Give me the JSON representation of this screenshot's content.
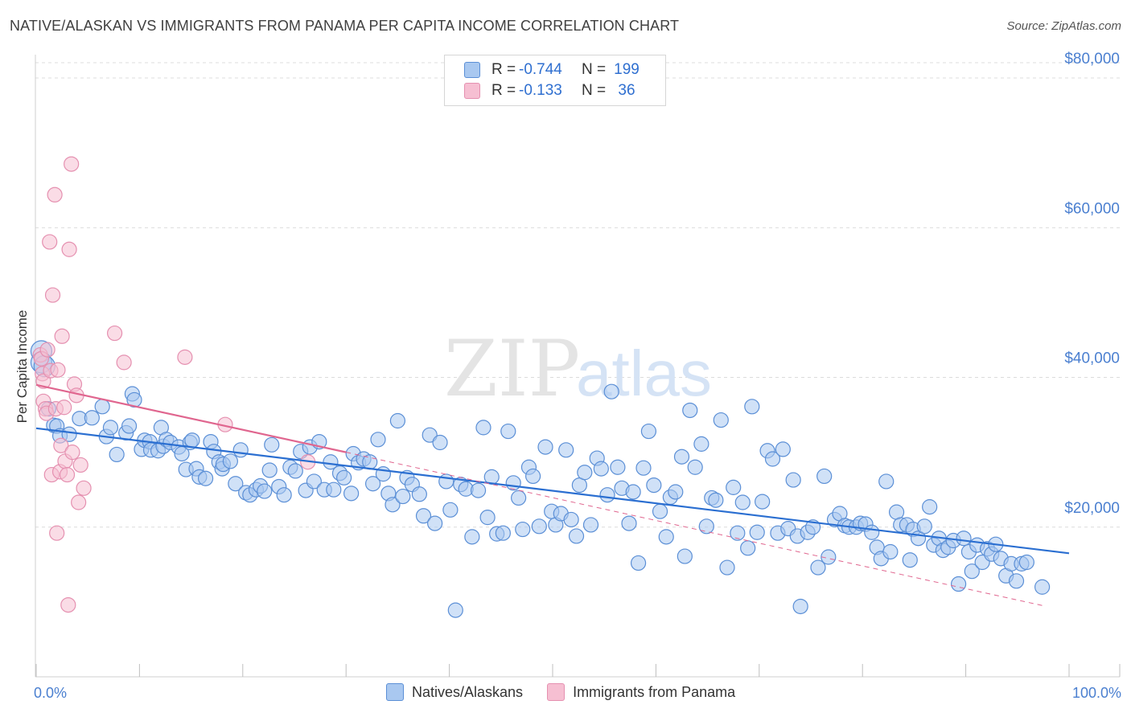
{
  "title": "NATIVE/ALASKAN VS IMMIGRANTS FROM PANAMA PER CAPITA INCOME CORRELATION CHART",
  "source": "Source: ZipAtlas.com",
  "watermark": {
    "zip": "ZIP",
    "atlas": "atlas"
  },
  "colors": {
    "blue_fill": "#a9c8f0",
    "blue_stroke": "#5b8fd6",
    "blue_line": "#2b6fd1",
    "pink_fill": "#f6bfd2",
    "pink_stroke": "#e590b0",
    "pink_line": "#e0668f",
    "grid": "#dcdcdc",
    "axis_text": "#4a7fd0"
  },
  "stats": [
    {
      "r_label": "R =",
      "r_value": "-0.744",
      "n_label": "N =",
      "n_value": "199",
      "series": "blue"
    },
    {
      "r_label": "R =",
      "r_value": "-0.133",
      "n_label": "N =",
      "n_value": "36",
      "series": "pink"
    }
  ],
  "legend": [
    {
      "label": "Natives/Alaskans",
      "series": "blue"
    },
    {
      "label": "Immigrants from Panama",
      "series": "pink"
    }
  ],
  "chart_data": {
    "type": "scatter",
    "title": "NATIVE/ALASKAN VS IMMIGRANTS FROM PANAMA PER CAPITA INCOME CORRELATION CHART",
    "xlabel": "",
    "ylabel": "Per Capita Income",
    "xlim": [
      0,
      100
    ],
    "ylim": [
      0,
      82000
    ],
    "x_tick_labels": [
      "0.0%",
      "100.0%"
    ],
    "y_ticks": [
      20000,
      40000,
      60000,
      80000
    ],
    "y_tick_labels": [
      "$20,000",
      "$40,000",
      "$60,000",
      "$80,000"
    ],
    "grid": true,
    "legend_position": "bottom",
    "series": [
      {
        "name": "Natives/Alaskans",
        "color": "blue",
        "trend": {
          "x": [
            0,
            100
          ],
          "y": [
            33200,
            16500
          ],
          "style": "solid"
        },
        "points": [
          [
            0.5,
            43500
          ],
          [
            0.5,
            42000
          ],
          [
            0.8,
            41500
          ],
          [
            1.2,
            35800
          ],
          [
            1.7,
            33600
          ],
          [
            2,
            33500
          ],
          [
            2.3,
            32200
          ],
          [
            3.2,
            32400
          ],
          [
            4.2,
            34500
          ],
          [
            5.4,
            34600
          ],
          [
            6.4,
            36100
          ],
          [
            6.8,
            32100
          ],
          [
            7.2,
            33300
          ],
          [
            7.8,
            29700
          ],
          [
            8.7,
            32600
          ],
          [
            9,
            33500
          ],
          [
            9.3,
            37800
          ],
          [
            9.5,
            37000
          ],
          [
            10.2,
            30400
          ],
          [
            10.5,
            31600
          ],
          [
            11,
            31400
          ],
          [
            11.1,
            30300
          ],
          [
            11.8,
            30200
          ],
          [
            12.1,
            33300
          ],
          [
            12.3,
            30800
          ],
          [
            12.6,
            31700
          ],
          [
            13,
            31300
          ],
          [
            13.8,
            30700
          ],
          [
            14.1,
            29800
          ],
          [
            14.5,
            27700
          ],
          [
            14.9,
            31300
          ],
          [
            15.1,
            31600
          ],
          [
            15.5,
            27800
          ],
          [
            15.8,
            26700
          ],
          [
            16.4,
            26500
          ],
          [
            16.9,
            31400
          ],
          [
            17.2,
            30100
          ],
          [
            17.7,
            28700
          ],
          [
            18,
            27800
          ],
          [
            18.1,
            28400
          ],
          [
            18.8,
            28800
          ],
          [
            19.3,
            25800
          ],
          [
            19.8,
            30300
          ],
          [
            20.3,
            24600
          ],
          [
            20.7,
            24300
          ],
          [
            21.3,
            25000
          ],
          [
            21.7,
            25500
          ],
          [
            22.1,
            24800
          ],
          [
            22.6,
            27600
          ],
          [
            22.8,
            31000
          ],
          [
            23.5,
            25400
          ],
          [
            24,
            24300
          ],
          [
            24.6,
            28000
          ],
          [
            25.1,
            27500
          ],
          [
            25.6,
            30100
          ],
          [
            26.1,
            24900
          ],
          [
            26.5,
            30700
          ],
          [
            26.9,
            26100
          ],
          [
            27.4,
            31400
          ],
          [
            27.9,
            25000
          ],
          [
            28.5,
            28700
          ],
          [
            28.8,
            25000
          ],
          [
            29.4,
            27200
          ],
          [
            29.8,
            26600
          ],
          [
            30.5,
            24500
          ],
          [
            30.7,
            29800
          ],
          [
            31.2,
            28600
          ],
          [
            31.7,
            29100
          ],
          [
            32.3,
            28700
          ],
          [
            32.6,
            25800
          ],
          [
            33.1,
            31700
          ],
          [
            33.6,
            27100
          ],
          [
            34.1,
            24500
          ],
          [
            34.5,
            23000
          ],
          [
            35,
            34200
          ],
          [
            35.5,
            24100
          ],
          [
            35.9,
            26600
          ],
          [
            36.4,
            25700
          ],
          [
            37.1,
            24400
          ],
          [
            37.5,
            21500
          ],
          [
            38.1,
            32300
          ],
          [
            38.6,
            20500
          ],
          [
            39.1,
            31300
          ],
          [
            39.7,
            26100
          ],
          [
            40.1,
            22300
          ],
          [
            40.6,
            8900
          ],
          [
            41.1,
            25700
          ],
          [
            41.6,
            25100
          ],
          [
            42.2,
            18700
          ],
          [
            42.8,
            24900
          ],
          [
            43.3,
            33300
          ],
          [
            43.7,
            21300
          ],
          [
            44.1,
            26700
          ],
          [
            44.6,
            19100
          ],
          [
            45.2,
            19200
          ],
          [
            45.7,
            32800
          ],
          [
            46.2,
            25900
          ],
          [
            46.7,
            23900
          ],
          [
            47.1,
            19700
          ],
          [
            47.7,
            28000
          ],
          [
            48.1,
            26800
          ],
          [
            48.7,
            20100
          ],
          [
            49.3,
            30700
          ],
          [
            49.9,
            22100
          ],
          [
            50.3,
            20300
          ],
          [
            50.8,
            21800
          ],
          [
            51.3,
            30300
          ],
          [
            51.8,
            21000
          ],
          [
            52.3,
            18800
          ],
          [
            52.6,
            25600
          ],
          [
            53.1,
            27300
          ],
          [
            53.7,
            20300
          ],
          [
            54.3,
            29200
          ],
          [
            54.7,
            27800
          ],
          [
            55.3,
            24300
          ],
          [
            55.7,
            38100
          ],
          [
            56.3,
            28000
          ],
          [
            56.7,
            25200
          ],
          [
            57.4,
            20500
          ],
          [
            57.8,
            24700
          ],
          [
            58.3,
            15200
          ],
          [
            58.8,
            27900
          ],
          [
            59.3,
            32800
          ],
          [
            59.8,
            25600
          ],
          [
            60.4,
            22100
          ],
          [
            61,
            18700
          ],
          [
            61.4,
            24000
          ],
          [
            61.9,
            24700
          ],
          [
            62.5,
            29400
          ],
          [
            62.8,
            16100
          ],
          [
            63.3,
            35600
          ],
          [
            63.8,
            28000
          ],
          [
            64.4,
            31100
          ],
          [
            64.9,
            20100
          ],
          [
            65.4,
            23900
          ],
          [
            65.8,
            23600
          ],
          [
            66.3,
            34300
          ],
          [
            66.9,
            14600
          ],
          [
            67.5,
            25300
          ],
          [
            67.9,
            19200
          ],
          [
            68.4,
            23300
          ],
          [
            68.9,
            17200
          ],
          [
            69.3,
            36100
          ],
          [
            69.8,
            19300
          ],
          [
            70.3,
            23400
          ],
          [
            70.8,
            30200
          ],
          [
            71.3,
            29100
          ],
          [
            71.8,
            19200
          ],
          [
            72.3,
            30400
          ],
          [
            72.8,
            19800
          ],
          [
            73.3,
            26300
          ],
          [
            73.7,
            18800
          ],
          [
            74,
            9400
          ],
          [
            74.7,
            19300
          ],
          [
            75.2,
            20000
          ],
          [
            75.7,
            14600
          ],
          [
            76.3,
            26800
          ],
          [
            76.7,
            16000
          ],
          [
            77.3,
            21000
          ],
          [
            77.8,
            21800
          ],
          [
            78.3,
            20200
          ],
          [
            78.7,
            20000
          ],
          [
            79.4,
            20000
          ],
          [
            79.8,
            20500
          ],
          [
            80.3,
            20400
          ],
          [
            80.9,
            19300
          ],
          [
            81.4,
            17300
          ],
          [
            81.8,
            15800
          ],
          [
            82.3,
            26100
          ],
          [
            82.7,
            16700
          ],
          [
            83.3,
            22000
          ],
          [
            83.7,
            20300
          ],
          [
            84.3,
            20300
          ],
          [
            84.6,
            15600
          ],
          [
            84.9,
            19700
          ],
          [
            85.4,
            18500
          ],
          [
            86,
            20100
          ],
          [
            86.5,
            22700
          ],
          [
            86.9,
            17600
          ],
          [
            87.4,
            18500
          ],
          [
            87.8,
            16900
          ],
          [
            88.3,
            17300
          ],
          [
            88.8,
            18200
          ],
          [
            89.3,
            12400
          ],
          [
            89.8,
            18500
          ],
          [
            90.3,
            16700
          ],
          [
            90.6,
            14100
          ],
          [
            91.1,
            17600
          ],
          [
            91.6,
            15300
          ],
          [
            92.1,
            17100
          ],
          [
            92.5,
            16400
          ],
          [
            92.9,
            17700
          ],
          [
            93.4,
            15800
          ],
          [
            93.9,
            13500
          ],
          [
            94.4,
            15100
          ],
          [
            94.9,
            12800
          ],
          [
            95.4,
            15100
          ],
          [
            95.9,
            15300
          ],
          [
            97.4,
            12000
          ]
        ]
      },
      {
        "name": "Immigrants from Panama",
        "color": "pink",
        "trend": {
          "x": [
            0,
            30
          ],
          "y": [
            39000,
            30000
          ],
          "style": "solid",
          "extension": {
            "x": [
              30,
              97.5
            ],
            "y": [
              30000,
              9500
            ],
            "style": "dashed"
          }
        },
        "points": [
          [
            0.4,
            43000
          ],
          [
            0.5,
            42500
          ],
          [
            0.6,
            40500
          ],
          [
            0.7,
            39500
          ],
          [
            0.7,
            36800
          ],
          [
            0.9,
            35800
          ],
          [
            1,
            35200
          ],
          [
            1.1,
            43700
          ],
          [
            1.3,
            58100
          ],
          [
            1.4,
            40900
          ],
          [
            1.5,
            27000
          ],
          [
            1.6,
            51000
          ],
          [
            1.8,
            64400
          ],
          [
            1.9,
            35800
          ],
          [
            2,
            19200
          ],
          [
            2.1,
            41000
          ],
          [
            2.3,
            27400
          ],
          [
            2.4,
            30900
          ],
          [
            2.5,
            45500
          ],
          [
            2.7,
            36000
          ],
          [
            2.8,
            28800
          ],
          [
            3,
            27000
          ],
          [
            3.1,
            9600
          ],
          [
            3.2,
            57100
          ],
          [
            3.4,
            68500
          ],
          [
            3.5,
            30000
          ],
          [
            3.7,
            39100
          ],
          [
            3.9,
            37600
          ],
          [
            4.1,
            23300
          ],
          [
            4.3,
            28300
          ],
          [
            4.6,
            25200
          ],
          [
            7.6,
            45900
          ],
          [
            8.5,
            42000
          ],
          [
            14.4,
            42700
          ],
          [
            18.3,
            33700
          ],
          [
            26.3,
            28700
          ]
        ]
      }
    ]
  }
}
